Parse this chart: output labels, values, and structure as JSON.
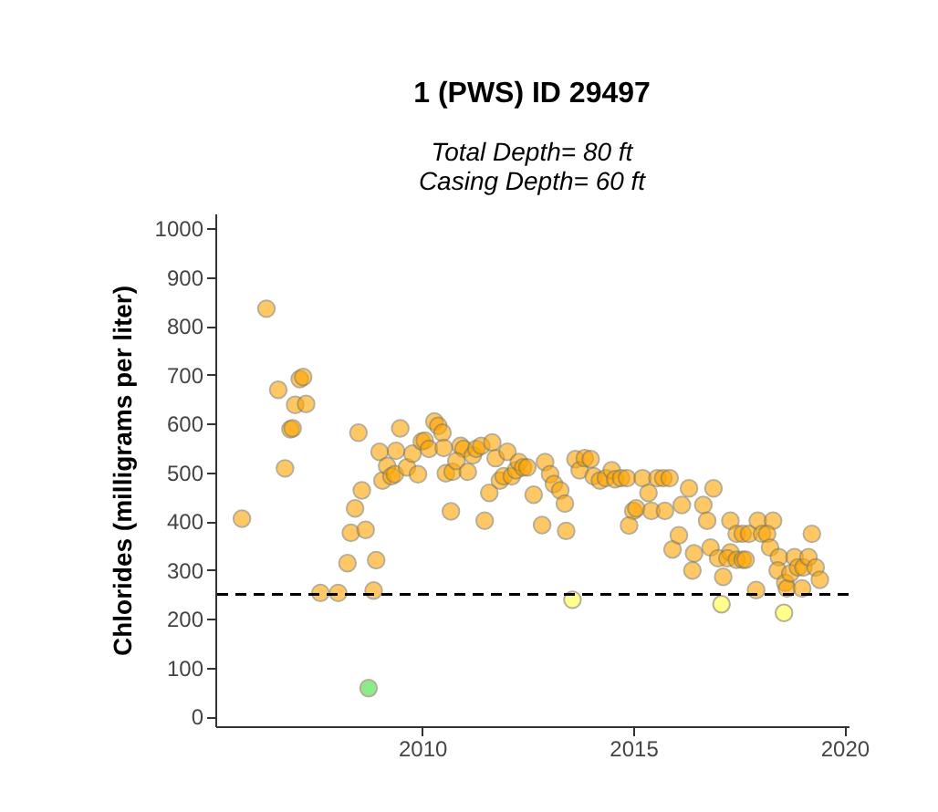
{
  "chart_data": {
    "type": "scatter",
    "title": "1 (PWS) ID 29497",
    "subtitle": "Total Depth= 80 ft\nCasing Depth= 60 ft",
    "ylabel": "Chlorides (milligrams per liter)",
    "xlim": [
      2005.1,
      2020.1
    ],
    "xticks": [
      2010,
      2015,
      2020
    ],
    "ylim": [
      -20,
      1030
    ],
    "yticks": [
      0,
      100,
      200,
      300,
      400,
      500,
      600,
      700,
      800,
      900,
      1000
    ],
    "grid": false,
    "legend": false,
    "marker": "circle",
    "ref_lines": [
      {
        "axis": "y",
        "value": 250,
        "line_style": "dashed",
        "color": "#000000"
      }
    ],
    "series": [
      {
        "color": "#ffa500",
        "x": [
          2005.73,
          2006.31,
          2006.59,
          2007.1,
          2007.18,
          2006.99,
          2007.25,
          2006.88,
          2006.93,
          2006.75,
          2007.59,
          2008.01,
          2008.85,
          2008.91,
          2008.23,
          2008.31,
          2008.66,
          2008.41,
          2008.57,
          2008.49,
          2008.99,
          2009.06,
          2009.17,
          2009.27,
          2009.35,
          2009.48,
          2009.38,
          2009.64,
          2009.77,
          2009.9,
          2009.99,
          2010.06,
          2010.16,
          2010.29,
          2010.38,
          2010.48,
          2010.51,
          2010.56,
          2010.68,
          2010.72,
          2010.91,
          2010.98,
          2010.81,
          2011.08,
          2011.2,
          2011.28,
          2011.4,
          2011.48,
          2011.66,
          2011.74,
          2011.84,
          2011.59,
          2012.02,
          2011.93,
          2012.12,
          2012.22,
          2012.29,
          2012.39,
          2012.49,
          2012.64,
          2012.91,
          2012.84,
          2013.03,
          2013.12,
          2013.27,
          2013.38,
          2013.41,
          2013.63,
          2013.73,
          2013.85,
          2013.99,
          2014.06,
          2014.21,
          2014.35,
          2014.49,
          2014.57,
          2014.71,
          2014.85,
          2015.0,
          2014.9,
          2015.07,
          2015.22,
          2015.36,
          2015.43,
          2015.57,
          2015.71,
          2015.86,
          2015.75,
          2016.15,
          2016.32,
          2016.66,
          2016.9,
          2015.93,
          2016.08,
          2016.44,
          2016.4,
          2016.75,
          2016.83,
          2017.01,
          2017.3,
          2017.45,
          2017.59,
          2017.74,
          2017.95,
          2018.31,
          2018.05,
          2018.17,
          2018.24,
          2017.3,
          2017.23,
          2017.45,
          2017.59,
          2017.66,
          2017.13,
          2017.91,
          2018.45,
          2018.42,
          2018.6,
          2018.64,
          2019.0,
          2018.72,
          2018.82,
          2018.9,
          2019.03,
          2019.15,
          2019.32,
          2019.42,
          2019.23
        ],
        "values": [
          405,
          835,
          669,
          691,
          695,
          638,
          640,
          588,
          590,
          508,
          253,
          253,
          258,
          320,
          314,
          376,
          382,
          426,
          463,
          581,
          542,
          483,
          513,
          492,
          496,
          590,
          544,
          510,
          538,
          496,
          563,
          565,
          548,
          604,
          595,
          581,
          550,
          498,
          420,
          501,
          554,
          548,
          523,
          501,
          535,
          548,
          554,
          401,
          561,
          529,
          483,
          458,
          542,
          492,
          492,
          504,
          521,
          510,
          510,
          454,
          521,
          392,
          496,
          476,
          463,
          436,
          380,
          527,
          504,
          529,
          527,
          492,
          483,
          488,
          504,
          486,
          488,
          488,
          421,
          391,
          426,
          488,
          458,
          421,
          488,
          488,
          488,
          421,
          433,
          467,
          433,
          467,
          342,
          371,
          334,
          299,
          401,
          346,
          324,
          401,
          374,
          374,
          374,
          401,
          401,
          374,
          374,
          346,
          336,
          324,
          321,
          321,
          321,
          286,
          259,
          326,
          299,
          274,
          262,
          262,
          293,
          326,
          305,
          305,
          326,
          305,
          280,
          374
        ]
      },
      {
        "color": "#ffff40",
        "x": [
          2013.56,
          2017.09,
          2018.57
        ],
        "values": [
          239,
          230,
          212
        ]
      },
      {
        "color": "#40e040",
        "x": [
          2008.73
        ],
        "values": [
          58
        ]
      }
    ]
  }
}
